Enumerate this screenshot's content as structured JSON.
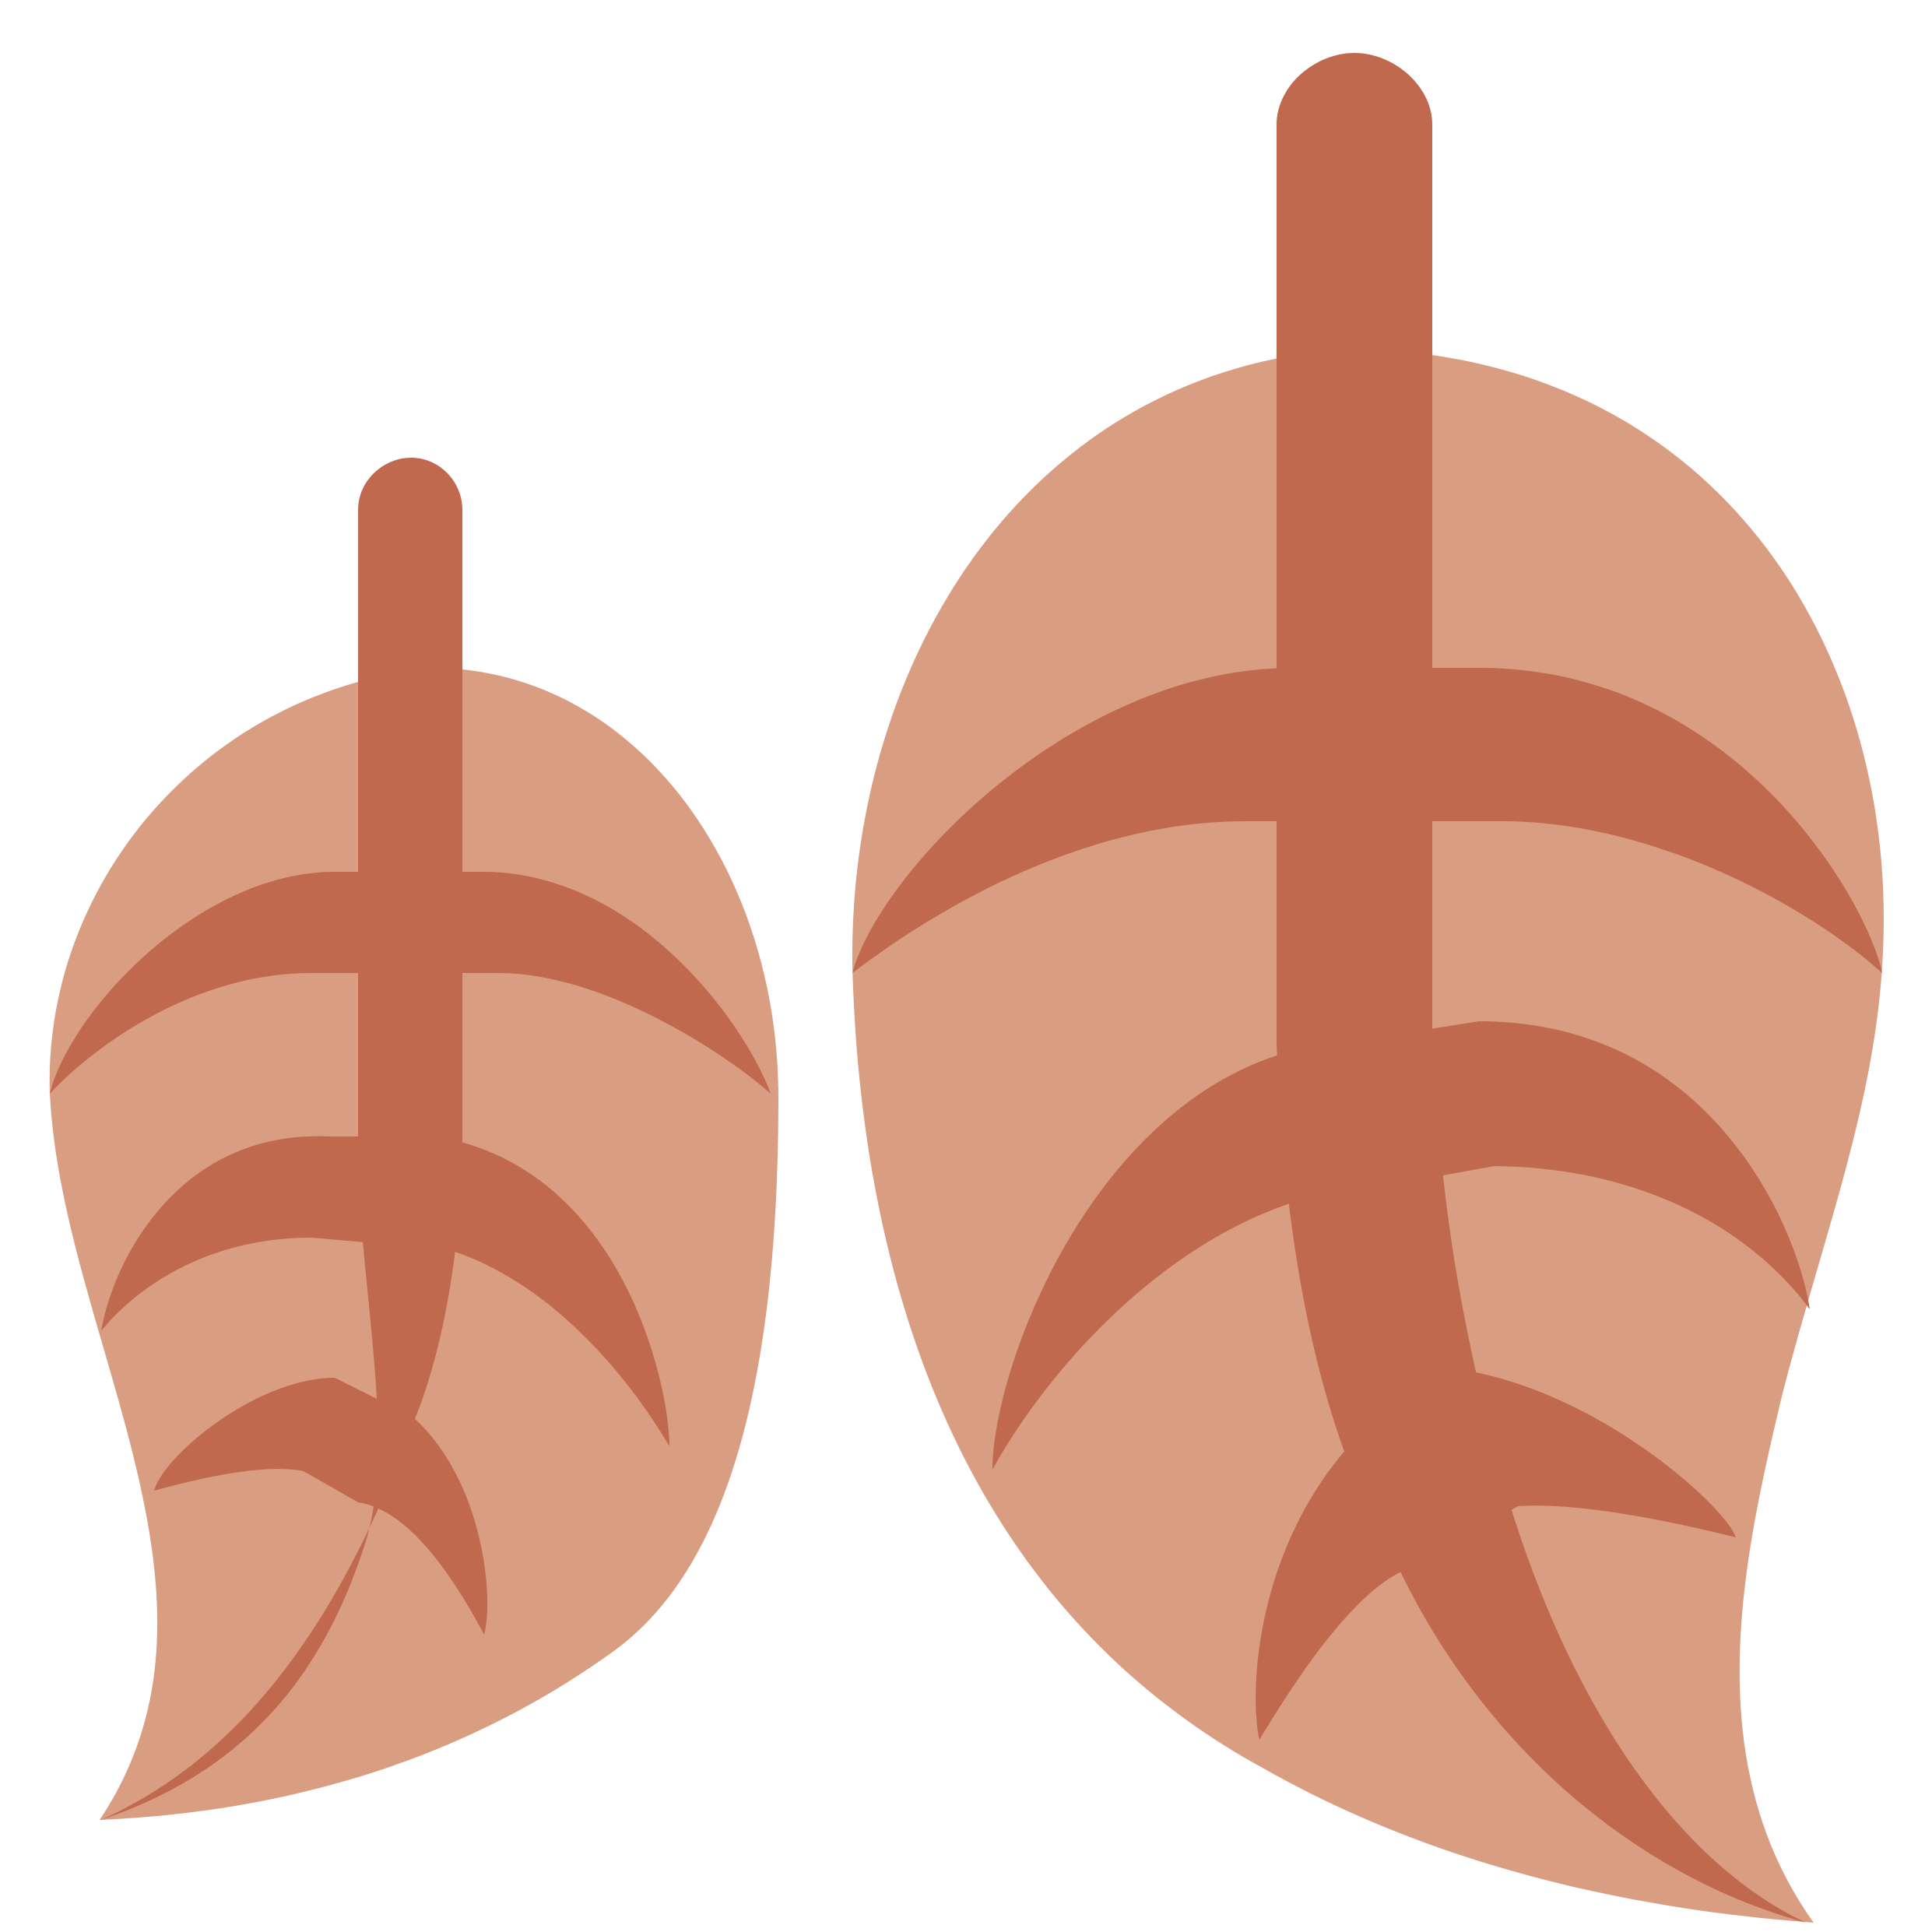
{
  "image": {
    "subject": "two-leaves-emoji",
    "colors": {
      "background": "#FFFFFF",
      "leaf_fill": "#D99E82",
      "vein": "#C1694F"
    },
    "leaves": [
      {
        "name": "small-leaf"
      },
      {
        "name": "large-leaf"
      }
    ]
  }
}
